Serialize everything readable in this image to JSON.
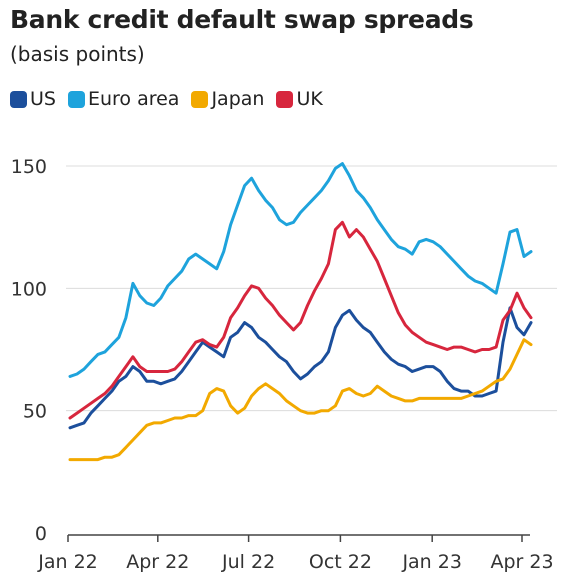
{
  "chart_data": {
    "type": "line",
    "title": "Bank credit default swap spreads",
    "subtitle": "(basis points)",
    "xlabel": "",
    "ylabel": "",
    "ylim": [
      0,
      150
    ],
    "yticks": [
      0,
      50,
      100,
      150
    ],
    "x_start": "2022-01-03",
    "x_end": "2023-04-10",
    "xticks": [
      {
        "date": "2022-01-01",
        "label": "Jan 22"
      },
      {
        "date": "2022-04-01",
        "label": "Apr 22"
      },
      {
        "date": "2022-07-01",
        "label": "Jul 22"
      },
      {
        "date": "2022-10-01",
        "label": "Oct 22"
      },
      {
        "date": "2023-01-01",
        "label": "Jan 23"
      },
      {
        "date": "2023-04-01",
        "label": "Apr 23"
      }
    ],
    "grid": "horizontal",
    "legend_position": "top-left",
    "series": [
      {
        "name": "US",
        "color": "#1c4f9c",
        "points": [
          [
            "2022-01-03",
            43
          ],
          [
            "2022-01-10",
            44
          ],
          [
            "2022-01-17",
            45
          ],
          [
            "2022-01-24",
            49
          ],
          [
            "2022-01-31",
            52
          ],
          [
            "2022-02-07",
            55
          ],
          [
            "2022-02-14",
            58
          ],
          [
            "2022-02-21",
            62
          ],
          [
            "2022-02-28",
            64
          ],
          [
            "2022-03-07",
            68
          ],
          [
            "2022-03-14",
            66
          ],
          [
            "2022-03-21",
            62
          ],
          [
            "2022-03-28",
            62
          ],
          [
            "2022-04-04",
            61
          ],
          [
            "2022-04-11",
            62
          ],
          [
            "2022-04-18",
            63
          ],
          [
            "2022-04-25",
            66
          ],
          [
            "2022-05-02",
            70
          ],
          [
            "2022-05-09",
            74
          ],
          [
            "2022-05-16",
            78
          ],
          [
            "2022-05-23",
            76
          ],
          [
            "2022-05-30",
            74
          ],
          [
            "2022-06-06",
            72
          ],
          [
            "2022-06-13",
            80
          ],
          [
            "2022-06-20",
            82
          ],
          [
            "2022-06-27",
            86
          ],
          [
            "2022-07-04",
            84
          ],
          [
            "2022-07-11",
            80
          ],
          [
            "2022-07-18",
            78
          ],
          [
            "2022-07-25",
            75
          ],
          [
            "2022-08-01",
            72
          ],
          [
            "2022-08-08",
            70
          ],
          [
            "2022-08-15",
            66
          ],
          [
            "2022-08-22",
            63
          ],
          [
            "2022-08-29",
            65
          ],
          [
            "2022-09-05",
            68
          ],
          [
            "2022-09-12",
            70
          ],
          [
            "2022-09-19",
            74
          ],
          [
            "2022-09-26",
            84
          ],
          [
            "2022-10-03",
            89
          ],
          [
            "2022-10-10",
            91
          ],
          [
            "2022-10-17",
            87
          ],
          [
            "2022-10-24",
            84
          ],
          [
            "2022-10-31",
            82
          ],
          [
            "2022-11-07",
            78
          ],
          [
            "2022-11-14",
            74
          ],
          [
            "2022-11-21",
            71
          ],
          [
            "2022-11-28",
            69
          ],
          [
            "2022-12-05",
            68
          ],
          [
            "2022-12-12",
            66
          ],
          [
            "2022-12-19",
            67
          ],
          [
            "2022-12-26",
            68
          ],
          [
            "2023-01-02",
            68
          ],
          [
            "2023-01-09",
            66
          ],
          [
            "2023-01-16",
            62
          ],
          [
            "2023-01-23",
            59
          ],
          [
            "2023-01-30",
            58
          ],
          [
            "2023-02-06",
            58
          ],
          [
            "2023-02-13",
            56
          ],
          [
            "2023-02-20",
            56
          ],
          [
            "2023-02-27",
            57
          ],
          [
            "2023-03-06",
            58
          ],
          [
            "2023-03-13",
            78
          ],
          [
            "2023-03-20",
            92
          ],
          [
            "2023-03-27",
            84
          ],
          [
            "2023-04-03",
            81
          ],
          [
            "2023-04-10",
            86
          ]
        ]
      },
      {
        "name": "Euro area",
        "color": "#1ea3dc",
        "points": [
          [
            "2022-01-03",
            64
          ],
          [
            "2022-01-10",
            65
          ],
          [
            "2022-01-17",
            67
          ],
          [
            "2022-01-24",
            70
          ],
          [
            "2022-01-31",
            73
          ],
          [
            "2022-02-07",
            74
          ],
          [
            "2022-02-14",
            77
          ],
          [
            "2022-02-21",
            80
          ],
          [
            "2022-02-28",
            88
          ],
          [
            "2022-03-07",
            102
          ],
          [
            "2022-03-14",
            97
          ],
          [
            "2022-03-21",
            94
          ],
          [
            "2022-03-28",
            93
          ],
          [
            "2022-04-04",
            96
          ],
          [
            "2022-04-11",
            101
          ],
          [
            "2022-04-18",
            104
          ],
          [
            "2022-04-25",
            107
          ],
          [
            "2022-05-02",
            112
          ],
          [
            "2022-05-09",
            114
          ],
          [
            "2022-05-16",
            112
          ],
          [
            "2022-05-23",
            110
          ],
          [
            "2022-05-30",
            108
          ],
          [
            "2022-06-06",
            115
          ],
          [
            "2022-06-13",
            126
          ],
          [
            "2022-06-20",
            134
          ],
          [
            "2022-06-27",
            142
          ],
          [
            "2022-07-04",
            145
          ],
          [
            "2022-07-11",
            140
          ],
          [
            "2022-07-18",
            136
          ],
          [
            "2022-07-25",
            133
          ],
          [
            "2022-08-01",
            128
          ],
          [
            "2022-08-08",
            126
          ],
          [
            "2022-08-15",
            127
          ],
          [
            "2022-08-22",
            131
          ],
          [
            "2022-08-29",
            134
          ],
          [
            "2022-09-05",
            137
          ],
          [
            "2022-09-12",
            140
          ],
          [
            "2022-09-19",
            144
          ],
          [
            "2022-09-26",
            149
          ],
          [
            "2022-10-03",
            151
          ],
          [
            "2022-10-10",
            146
          ],
          [
            "2022-10-17",
            140
          ],
          [
            "2022-10-24",
            137
          ],
          [
            "2022-10-31",
            133
          ],
          [
            "2022-11-07",
            128
          ],
          [
            "2022-11-14",
            124
          ],
          [
            "2022-11-21",
            120
          ],
          [
            "2022-11-28",
            117
          ],
          [
            "2022-12-05",
            116
          ],
          [
            "2022-12-12",
            114
          ],
          [
            "2022-12-19",
            119
          ],
          [
            "2022-12-26",
            120
          ],
          [
            "2023-01-02",
            119
          ],
          [
            "2023-01-09",
            117
          ],
          [
            "2023-01-16",
            114
          ],
          [
            "2023-01-23",
            111
          ],
          [
            "2023-01-30",
            108
          ],
          [
            "2023-02-06",
            105
          ],
          [
            "2023-02-13",
            103
          ],
          [
            "2023-02-20",
            102
          ],
          [
            "2023-02-27",
            100
          ],
          [
            "2023-03-06",
            98
          ],
          [
            "2023-03-13",
            110
          ],
          [
            "2023-03-20",
            123
          ],
          [
            "2023-03-27",
            124
          ],
          [
            "2023-04-03",
            113
          ],
          [
            "2023-04-10",
            115
          ]
        ]
      },
      {
        "name": "Japan",
        "color": "#f2a900",
        "points": [
          [
            "2022-01-03",
            30
          ],
          [
            "2022-01-10",
            30
          ],
          [
            "2022-01-17",
            30
          ],
          [
            "2022-01-24",
            30
          ],
          [
            "2022-01-31",
            30
          ],
          [
            "2022-02-07",
            31
          ],
          [
            "2022-02-14",
            31
          ],
          [
            "2022-02-21",
            32
          ],
          [
            "2022-02-28",
            35
          ],
          [
            "2022-03-07",
            38
          ],
          [
            "2022-03-14",
            41
          ],
          [
            "2022-03-21",
            44
          ],
          [
            "2022-03-28",
            45
          ],
          [
            "2022-04-04",
            45
          ],
          [
            "2022-04-11",
            46
          ],
          [
            "2022-04-18",
            47
          ],
          [
            "2022-04-25",
            47
          ],
          [
            "2022-05-02",
            48
          ],
          [
            "2022-05-09",
            48
          ],
          [
            "2022-05-16",
            50
          ],
          [
            "2022-05-23",
            57
          ],
          [
            "2022-05-30",
            59
          ],
          [
            "2022-06-06",
            58
          ],
          [
            "2022-06-13",
            52
          ],
          [
            "2022-06-20",
            49
          ],
          [
            "2022-06-27",
            51
          ],
          [
            "2022-07-04",
            56
          ],
          [
            "2022-07-11",
            59
          ],
          [
            "2022-07-18",
            61
          ],
          [
            "2022-07-25",
            59
          ],
          [
            "2022-08-01",
            57
          ],
          [
            "2022-08-08",
            54
          ],
          [
            "2022-08-15",
            52
          ],
          [
            "2022-08-22",
            50
          ],
          [
            "2022-08-29",
            49
          ],
          [
            "2022-09-05",
            49
          ],
          [
            "2022-09-12",
            50
          ],
          [
            "2022-09-19",
            50
          ],
          [
            "2022-09-26",
            52
          ],
          [
            "2022-10-03",
            58
          ],
          [
            "2022-10-10",
            59
          ],
          [
            "2022-10-17",
            57
          ],
          [
            "2022-10-24",
            56
          ],
          [
            "2022-10-31",
            57
          ],
          [
            "2022-11-07",
            60
          ],
          [
            "2022-11-14",
            58
          ],
          [
            "2022-11-21",
            56
          ],
          [
            "2022-11-28",
            55
          ],
          [
            "2022-12-05",
            54
          ],
          [
            "2022-12-12",
            54
          ],
          [
            "2022-12-19",
            55
          ],
          [
            "2022-12-26",
            55
          ],
          [
            "2023-01-02",
            55
          ],
          [
            "2023-01-09",
            55
          ],
          [
            "2023-01-16",
            55
          ],
          [
            "2023-01-23",
            55
          ],
          [
            "2023-01-30",
            55
          ],
          [
            "2023-02-06",
            56
          ],
          [
            "2023-02-13",
            57
          ],
          [
            "2023-02-20",
            58
          ],
          [
            "2023-02-27",
            60
          ],
          [
            "2023-03-06",
            62
          ],
          [
            "2023-03-13",
            63
          ],
          [
            "2023-03-20",
            67
          ],
          [
            "2023-03-27",
            73
          ],
          [
            "2023-04-03",
            79
          ],
          [
            "2023-04-10",
            77
          ]
        ]
      },
      {
        "name": "UK",
        "color": "#d7263d",
        "points": [
          [
            "2022-01-03",
            47
          ],
          [
            "2022-01-10",
            49
          ],
          [
            "2022-01-17",
            51
          ],
          [
            "2022-01-24",
            53
          ],
          [
            "2022-01-31",
            55
          ],
          [
            "2022-02-07",
            57
          ],
          [
            "2022-02-14",
            60
          ],
          [
            "2022-02-21",
            64
          ],
          [
            "2022-02-28",
            68
          ],
          [
            "2022-03-07",
            72
          ],
          [
            "2022-03-14",
            68
          ],
          [
            "2022-03-21",
            66
          ],
          [
            "2022-03-28",
            66
          ],
          [
            "2022-04-04",
            66
          ],
          [
            "2022-04-11",
            66
          ],
          [
            "2022-04-18",
            67
          ],
          [
            "2022-04-25",
            70
          ],
          [
            "2022-05-02",
            74
          ],
          [
            "2022-05-09",
            78
          ],
          [
            "2022-05-16",
            79
          ],
          [
            "2022-05-23",
            77
          ],
          [
            "2022-05-30",
            76
          ],
          [
            "2022-06-06",
            80
          ],
          [
            "2022-06-13",
            88
          ],
          [
            "2022-06-20",
            92
          ],
          [
            "2022-06-27",
            97
          ],
          [
            "2022-07-04",
            101
          ],
          [
            "2022-07-11",
            100
          ],
          [
            "2022-07-18",
            96
          ],
          [
            "2022-07-25",
            93
          ],
          [
            "2022-08-01",
            89
          ],
          [
            "2022-08-08",
            86
          ],
          [
            "2022-08-15",
            83
          ],
          [
            "2022-08-22",
            86
          ],
          [
            "2022-08-29",
            93
          ],
          [
            "2022-09-05",
            99
          ],
          [
            "2022-09-12",
            104
          ],
          [
            "2022-09-19",
            110
          ],
          [
            "2022-09-26",
            124
          ],
          [
            "2022-10-03",
            127
          ],
          [
            "2022-10-10",
            121
          ],
          [
            "2022-10-17",
            124
          ],
          [
            "2022-10-24",
            121
          ],
          [
            "2022-10-31",
            116
          ],
          [
            "2022-11-07",
            111
          ],
          [
            "2022-11-14",
            104
          ],
          [
            "2022-11-21",
            97
          ],
          [
            "2022-11-28",
            90
          ],
          [
            "2022-12-05",
            85
          ],
          [
            "2022-12-12",
            82
          ],
          [
            "2022-12-19",
            80
          ],
          [
            "2022-12-26",
            78
          ],
          [
            "2023-01-02",
            77
          ],
          [
            "2023-01-09",
            76
          ],
          [
            "2023-01-16",
            75
          ],
          [
            "2023-01-23",
            76
          ],
          [
            "2023-01-30",
            76
          ],
          [
            "2023-02-06",
            75
          ],
          [
            "2023-02-13",
            74
          ],
          [
            "2023-02-20",
            75
          ],
          [
            "2023-02-27",
            75
          ],
          [
            "2023-03-06",
            76
          ],
          [
            "2023-03-13",
            87
          ],
          [
            "2023-03-20",
            91
          ],
          [
            "2023-03-27",
            98
          ],
          [
            "2023-04-03",
            92
          ],
          [
            "2023-04-10",
            88
          ]
        ]
      }
    ]
  }
}
